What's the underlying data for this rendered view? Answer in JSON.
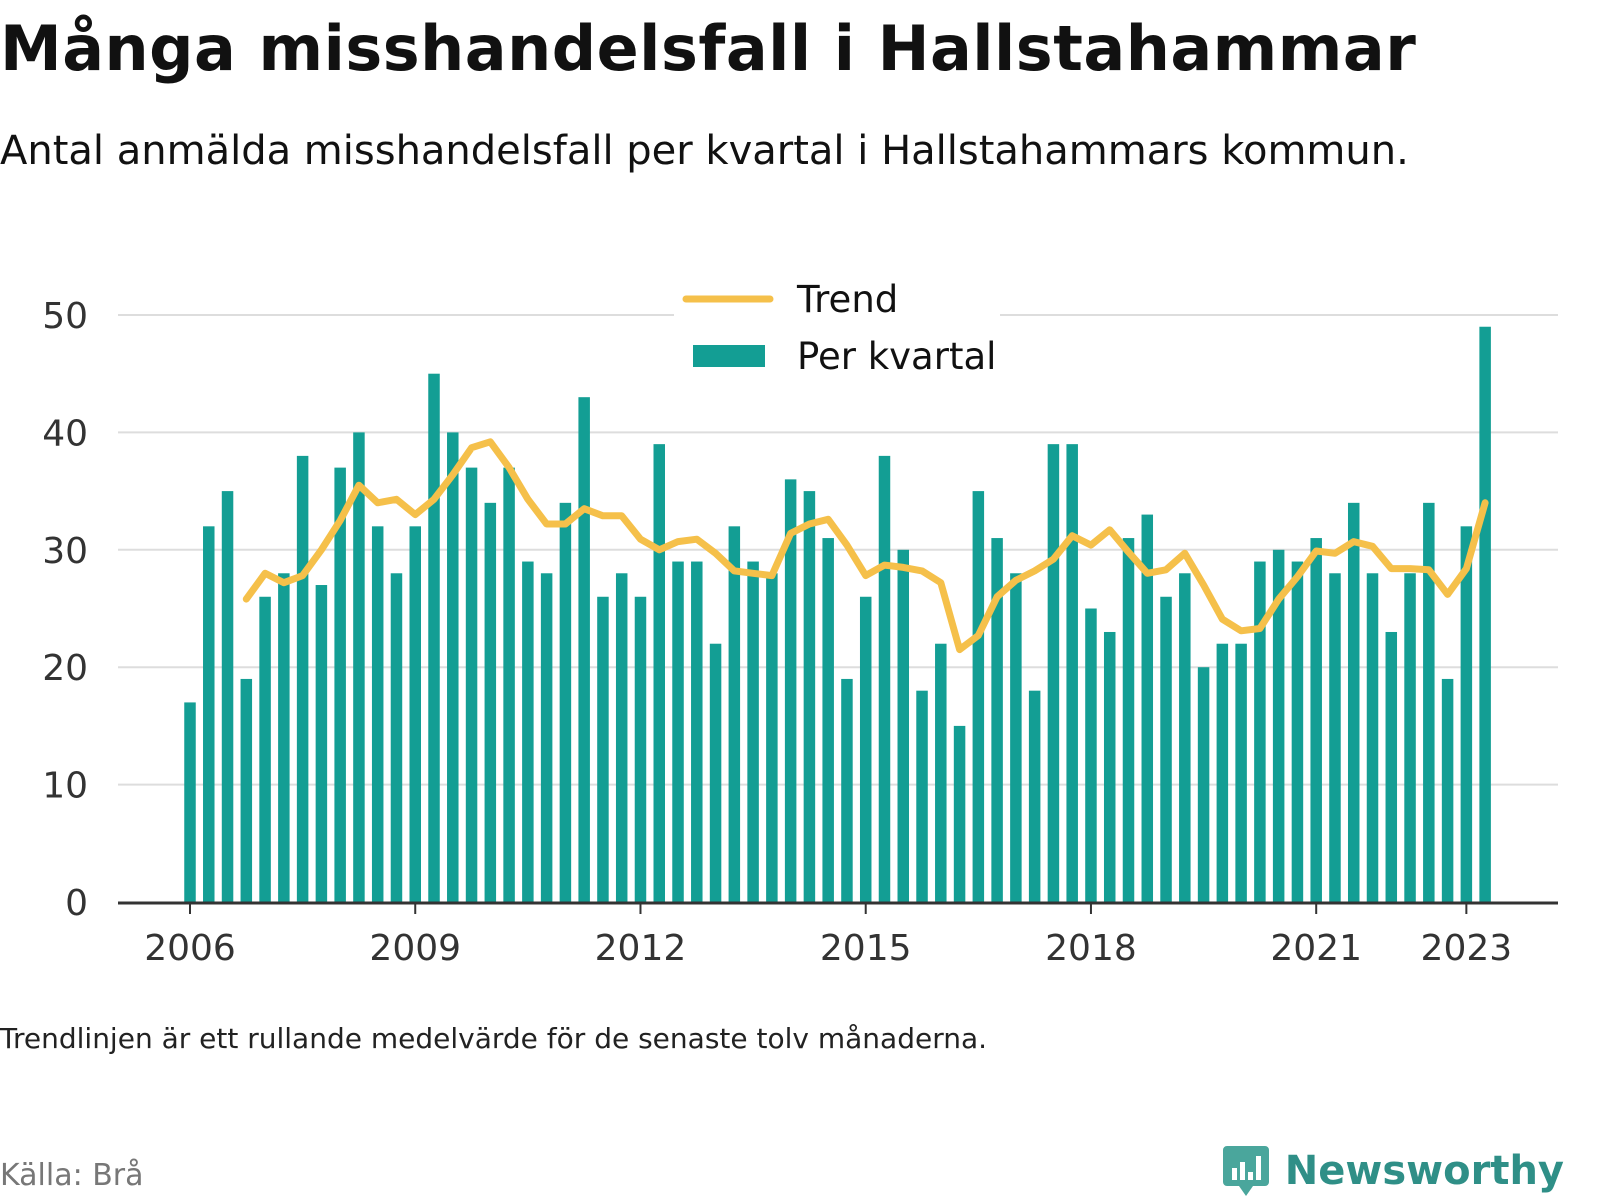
{
  "header": {
    "title": "Många misshandelsfall i Hallstahammar",
    "subtitle": "Antal anmälda misshandelsfall per kvartal i Hallstahammars kommun."
  },
  "footer": {
    "note": "Trendlinjen är ett rullande medelvärde för de senaste tolv månaderna.",
    "source": "Källa: Brå",
    "brand": "Newsworthy"
  },
  "colors": {
    "bar": "#139e94",
    "trend": "#f5c04a",
    "grid": "#dddddd",
    "axis": "#333333",
    "brand": "#2f8f87"
  },
  "chart_data": {
    "type": "bar",
    "ylim": [
      0,
      50
    ],
    "yticks": [
      "0",
      "10",
      "20",
      "30",
      "40",
      "50"
    ],
    "grid": true,
    "legend_position": "top-center",
    "legend": [
      "Trend",
      "Per kvartal"
    ],
    "xticks": [
      {
        "label": "2006",
        "x": 2006
      },
      {
        "label": "2009",
        "x": 2009
      },
      {
        "label": "2012",
        "x": 2012
      },
      {
        "label": "2015",
        "x": 2015
      },
      {
        "label": "2018",
        "x": 2018
      },
      {
        "label": "2021",
        "x": 2021
      },
      {
        "label": "2023",
        "x": 2023
      }
    ],
    "start_year": 2006,
    "series": [
      {
        "name": "Per kvartal",
        "type": "bar",
        "values": [
          17,
          32,
          35,
          19,
          26,
          28,
          38,
          27,
          37,
          40,
          32,
          28,
          32,
          45,
          40,
          37,
          34,
          37,
          29,
          28,
          34,
          43,
          26,
          28,
          26,
          39,
          29,
          29,
          22,
          32,
          29,
          28,
          36,
          35,
          31,
          19,
          26,
          38,
          30,
          18,
          22,
          15,
          35,
          31,
          28,
          18,
          39,
          39,
          25,
          23,
          31,
          33,
          26,
          28,
          20,
          22,
          22,
          29,
          30,
          29,
          31,
          28,
          34,
          28,
          23,
          28,
          34,
          19,
          32,
          49
        ]
      },
      {
        "name": "Trend",
        "type": "line",
        "start_index": 3,
        "values": [
          25.8,
          28.0,
          27.2,
          27.8,
          30.0,
          32.5,
          35.5,
          34.0,
          34.3,
          33.0,
          34.3,
          36.4,
          38.7,
          39.2,
          37.0,
          34.3,
          32.2,
          32.2,
          33.5,
          32.9,
          32.9,
          30.9,
          30.0,
          30.7,
          30.9,
          29.7,
          28.2,
          28.0,
          27.8,
          31.4,
          32.2,
          32.6,
          30.4,
          27.8,
          28.7,
          28.5,
          28.2,
          27.2,
          21.5,
          22.7,
          26.0,
          27.4,
          28.2,
          29.2,
          31.2,
          30.4,
          31.7,
          29.8,
          28.0,
          28.3,
          29.7,
          27.0,
          24.1,
          23.1,
          23.3,
          25.8,
          27.7,
          29.9,
          29.7,
          30.7,
          30.3,
          28.4,
          28.4,
          28.3,
          26.2,
          28.4,
          34.0
        ]
      }
    ]
  }
}
